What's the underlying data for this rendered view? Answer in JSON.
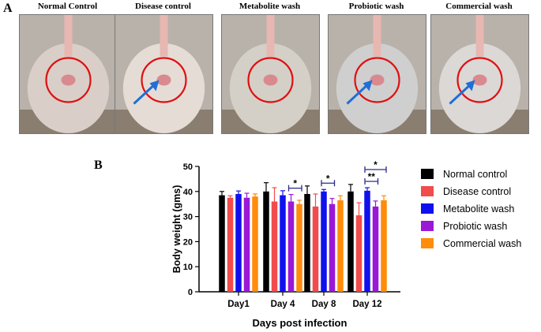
{
  "panels": {
    "a_label": "A",
    "b_label": "B",
    "photos": [
      {
        "caption": "Normal Control",
        "arrow": false,
        "tone": "#d9cfc8"
      },
      {
        "caption": "Disease control",
        "arrow": true,
        "tone": "#e6dcd6"
      },
      {
        "caption": "Metabolite wash",
        "arrow": false,
        "tone": "#d4d0c8"
      },
      {
        "caption": "Probiotic wash",
        "arrow": true,
        "tone": "#cfcfd0"
      },
      {
        "caption": "Commercial wash",
        "arrow": true,
        "tone": "#dcd8d6"
      }
    ]
  },
  "chart_data": {
    "type": "bar",
    "categories": [
      "Day1",
      "Day 4",
      "Day 8",
      "Day 12"
    ],
    "xlabel": "Days post infection",
    "ylabel": "Body weight (gms)",
    "ylim": [
      0,
      50
    ],
    "yticks": [
      0,
      10,
      20,
      30,
      40,
      50
    ],
    "grid": false,
    "legend_position": "right",
    "series": [
      {
        "name": "Normal control",
        "color": "#000000",
        "values": [
          38.5,
          40,
          39,
          40
        ],
        "errors": [
          1.5,
          3.5,
          3.2,
          2.8
        ]
      },
      {
        "name": "Disease control",
        "color": "#f24b4b",
        "values": [
          37.5,
          36,
          34,
          30.5
        ],
        "errors": [
          0.8,
          5.5,
          5.0,
          5.0
        ]
      },
      {
        "name": "Metabolite wash",
        "color": "#1010ee",
        "values": [
          39,
          38.5,
          40,
          40.3
        ],
        "errors": [
          1.2,
          1.8,
          0.8,
          1.2
        ]
      },
      {
        "name": "Probiotic wash",
        "color": "#9a18d6",
        "values": [
          37.5,
          36,
          35,
          34
        ],
        "errors": [
          1.8,
          2.8,
          2.2,
          2.2
        ]
      },
      {
        "name": "Commercial wash",
        "color": "#ff8c0a",
        "values": [
          38,
          35,
          36.5,
          36.5
        ],
        "errors": [
          1.0,
          1.5,
          1.8,
          1.8
        ]
      }
    ],
    "significance": [
      {
        "category": "Day 4",
        "from_series": 3,
        "to_series": 4,
        "label": "*",
        "level": 0
      },
      {
        "category": "Day 8",
        "from_series": 2,
        "to_series": 3,
        "label": "*",
        "level": 0
      },
      {
        "category": "Day 12",
        "from_series": 2,
        "to_series": 3,
        "label": "**",
        "level": 0
      },
      {
        "category": "Day 12",
        "from_series": 2,
        "to_series": 4,
        "label": "*",
        "level": 1
      }
    ]
  }
}
